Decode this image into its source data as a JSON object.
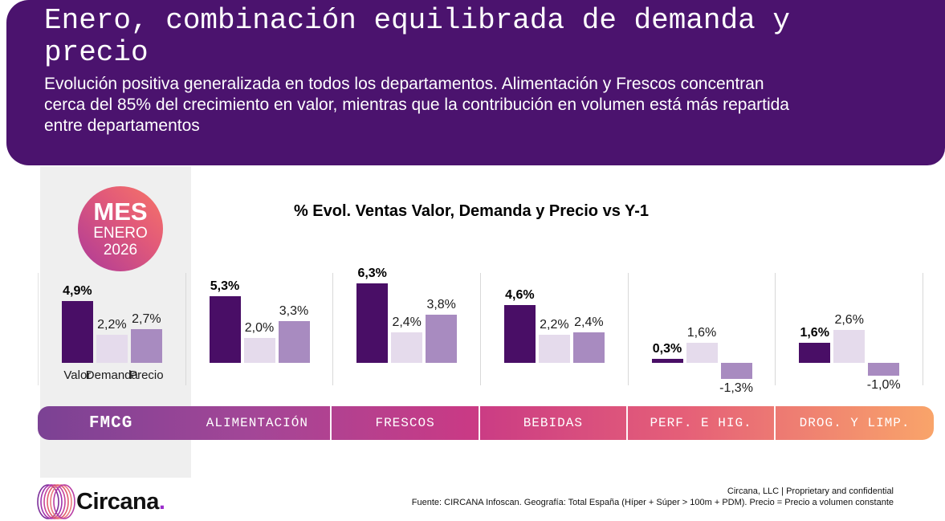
{
  "header": {
    "title": "Enero, combinación equilibrada de demanda y precio",
    "subtitle_lines": [
      "Evolución positiva generalizada en todos los departamentos. Alimentación y Frescos concentran",
      "cerca del 85% del crecimiento en valor, mientras que la contribución en volumen está más repartida",
      "entre departamentos"
    ]
  },
  "badge": {
    "label": "MES",
    "month": "ENERO",
    "year": "2026"
  },
  "chart_data": {
    "type": "bar",
    "title": "% Evol. Ventas Valor, Demanda y Precio vs Y-1",
    "unit": "%",
    "categories": [
      "FMCG",
      "ALIMENTACIÓN",
      "FRESCOS",
      "BEBIDAS",
      "PERF. E HIG.",
      "DROG. Y LIMP."
    ],
    "series": [
      {
        "name": "Valor",
        "values": [
          4.9,
          5.3,
          6.3,
          4.6,
          0.3,
          1.6
        ]
      },
      {
        "name": "Demanda",
        "values": [
          2.2,
          2.0,
          2.4,
          2.2,
          1.6,
          2.6
        ]
      },
      {
        "name": "Precio",
        "values": [
          2.7,
          3.3,
          3.8,
          2.4,
          -1.3,
          -1.0
        ]
      }
    ],
    "value_labels": [
      [
        "4,9%",
        "2,2%",
        "2,7%"
      ],
      [
        "5,3%",
        "2,0%",
        "3,3%"
      ],
      [
        "6,3%",
        "2,4%",
        "3,8%"
      ],
      [
        "4,6%",
        "2,2%",
        "2,4%"
      ],
      [
        "0,3%",
        "1,6%",
        "-1,3%"
      ],
      [
        "1,6%",
        "2,6%",
        "-1,0%"
      ]
    ],
    "ylim": [
      -1.5,
      6.5
    ],
    "grid": false,
    "legend_position": "below-first-group"
  },
  "colors": {
    "header_bg": "#4b136e",
    "panel_bg": "#efefef",
    "bar_valor": "#490e66",
    "bar_demanda": "#e5dbec",
    "bar_precio": "#a88bc0",
    "separator": "#d8d8d8",
    "band_gradient": [
      "#7b4294",
      "#a34697",
      "#c93a85",
      "#e55f78",
      "#f9a46a"
    ],
    "badge_gradient": [
      "#f3706a",
      "#ad3a99"
    ],
    "logo_dot": "#9a2ccb"
  },
  "footer": {
    "logo_text": "Circana",
    "logo_dot": ".",
    "legal": "Circana, LLC  |  Proprietary and confidential",
    "source": "Fuente: CIRCANA Infoscan. Geografía: Total España (Híper + Súper > 100m + PDM). Precio = Precio a volumen constante"
  }
}
